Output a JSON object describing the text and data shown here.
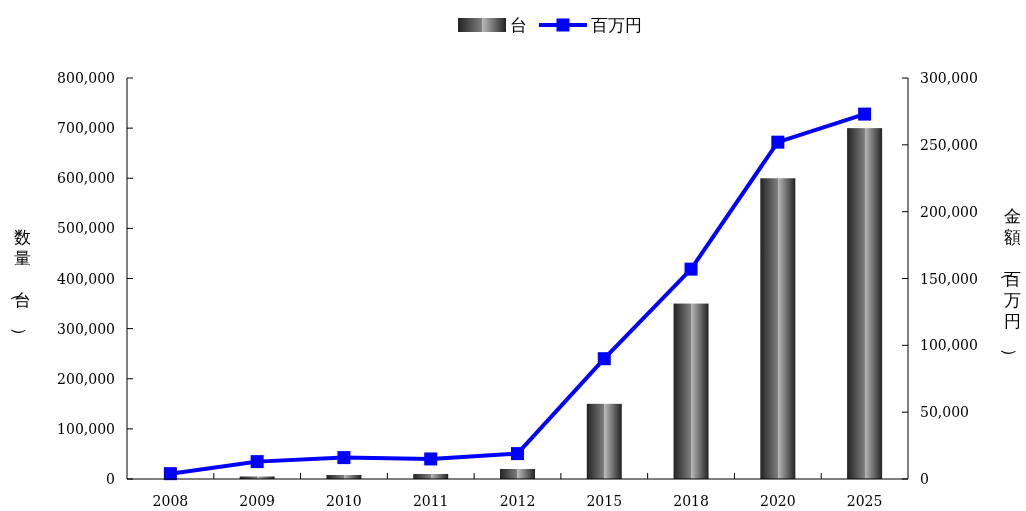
{
  "chart_data": {
    "type": "bar",
    "categories": [
      "2008",
      "2009",
      "2010",
      "2011",
      "2012",
      "2015",
      "2018",
      "2020",
      "2025"
    ],
    "series": [
      {
        "name": "台",
        "color": "#808080",
        "values": [
          0,
          5000,
          8000,
          10000,
          20000,
          150000,
          350000,
          600000,
          700000
        ]
      },
      {
        "name": "百万円",
        "type": "line",
        "axis": "y2",
        "color": "#0000ff",
        "marker": "square",
        "line_style": "solid",
        "values": [
          4000,
          13000,
          16000,
          15000,
          19000,
          90000,
          157000,
          252000,
          273000
        ]
      }
    ],
    "ylabel": "数量（台）",
    "y2label": "金額（百万円）",
    "ylim": [
      0,
      800000
    ],
    "yticks": [
      {
        "value": 0,
        "label": "0"
      },
      {
        "value": 100000,
        "label": "100,000"
      },
      {
        "value": 200000,
        "label": "200,000"
      },
      {
        "value": 300000,
        "label": "300,000"
      },
      {
        "value": 400000,
        "label": "400,000"
      },
      {
        "value": 500000,
        "label": "500,000"
      },
      {
        "value": 600000,
        "label": "600,000"
      },
      {
        "value": 700000,
        "label": "700,000"
      },
      {
        "value": 800000,
        "label": "800,000"
      }
    ],
    "y2lim": [
      0,
      300000
    ],
    "y2ticks": [
      {
        "value": 0,
        "label": "0"
      },
      {
        "value": 50000,
        "label": "50,000"
      },
      {
        "value": 100000,
        "label": "100,000"
      },
      {
        "value": 150000,
        "label": "150,000"
      },
      {
        "value": 200000,
        "label": "200,000"
      },
      {
        "value": 250000,
        "label": "250,000"
      },
      {
        "value": 300000,
        "label": "300,000"
      }
    ],
    "legend": "top"
  }
}
